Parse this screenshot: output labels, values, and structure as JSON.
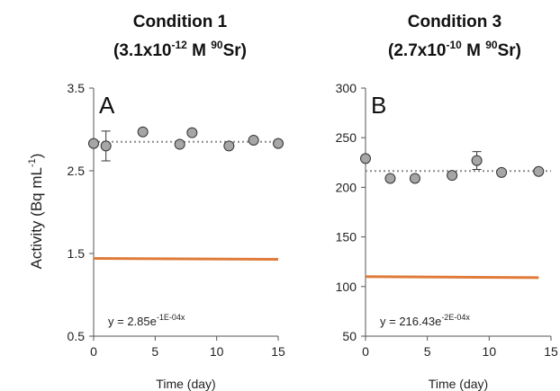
{
  "chart_data": [
    {
      "type": "scatter",
      "title": {
        "line1": "Condition 1",
        "line2_main": "(3.1x10",
        "line2_sup1": "-12",
        "line2_mid": " M ",
        "line2_sup2": "90",
        "line2_end": "Sr)"
      },
      "panel_label": "A",
      "xlabel": "Time (day)",
      "ylabel": {
        "main": "Activity (Bq mL",
        "sup": "-1",
        "end": ")"
      },
      "xlim": [
        0,
        15
      ],
      "ylim": [
        0.5,
        3.5
      ],
      "xticks": [
        0,
        5,
        10,
        15
      ],
      "yticks": [
        0.5,
        1.5,
        2.5,
        3.5
      ],
      "ytick_labels": [
        "0.5",
        "1.5",
        "2.5",
        "3.5"
      ],
      "points": [
        {
          "x": 0,
          "y": 2.83,
          "err": 0
        },
        {
          "x": 1,
          "y": 2.8,
          "err": 0.18
        },
        {
          "x": 4,
          "y": 2.97,
          "err": 0
        },
        {
          "x": 7,
          "y": 2.82,
          "err": 0
        },
        {
          "x": 8,
          "y": 2.96,
          "err": 0
        },
        {
          "x": 11,
          "y": 2.8,
          "err": 0
        },
        {
          "x": 13,
          "y": 2.87,
          "err": 0
        },
        {
          "x": 15,
          "y": 2.83,
          "err": 0
        }
      ],
      "fit_line": {
        "x": [
          0,
          15
        ],
        "y": [
          2.85,
          2.85
        ],
        "style": "dotted",
        "color": "#8a8a8a"
      },
      "reference_line": {
        "x": [
          0,
          15
        ],
        "y": [
          1.44,
          1.43
        ],
        "color": "#e07b39"
      },
      "equation": {
        "prefix": "y = 2.85e",
        "sup": "-1E-04x"
      },
      "marker_color": "#a6a6a6"
    },
    {
      "type": "scatter",
      "title": {
        "line1": "Condition 3",
        "line2_main": "(2.7x10",
        "line2_sup1": "-10",
        "line2_mid": " M ",
        "line2_sup2": "90",
        "line2_end": "Sr)"
      },
      "panel_label": "B",
      "xlabel": "Time (day)",
      "xlim": [
        0,
        15
      ],
      "ylim": [
        50,
        300
      ],
      "xticks": [
        0,
        5,
        10,
        15
      ],
      "yticks": [
        50,
        100,
        150,
        200,
        250,
        300
      ],
      "ytick_labels": [
        "50",
        "100",
        "150",
        "200",
        "250",
        "300"
      ],
      "points": [
        {
          "x": 0,
          "y": 229,
          "err": 0
        },
        {
          "x": 2,
          "y": 209,
          "err": 0
        },
        {
          "x": 4,
          "y": 209,
          "err": 0
        },
        {
          "x": 7,
          "y": 212,
          "err": 0
        },
        {
          "x": 9,
          "y": 227,
          "err": 9
        },
        {
          "x": 11,
          "y": 215,
          "err": 0
        },
        {
          "x": 14,
          "y": 216,
          "err": 0
        }
      ],
      "fit_line": {
        "x": [
          0,
          15
        ],
        "y": [
          216.4,
          216.4
        ],
        "style": "dotted",
        "color": "#8a8a8a"
      },
      "reference_line": {
        "x": [
          0,
          14
        ],
        "y": [
          110,
          109
        ],
        "color": "#e07b39"
      },
      "equation": {
        "prefix": "y = 216.43e",
        "sup": "-2E-04x"
      },
      "marker_color": "#a6a6a6"
    }
  ]
}
